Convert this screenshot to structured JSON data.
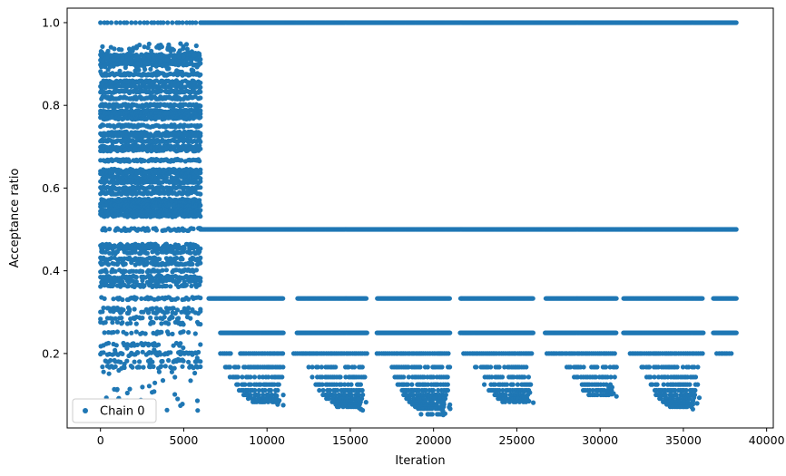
{
  "chart_data": {
    "type": "scatter",
    "title": "",
    "xlabel": "Iteration",
    "ylabel": "Acceptance ratio",
    "xlim": [
      -2000,
      40400
    ],
    "ylim": [
      0.02,
      1.035
    ],
    "xticks": [
      0,
      5000,
      10000,
      15000,
      20000,
      25000,
      30000,
      35000,
      40000
    ],
    "xtick_labels": [
      "0",
      "5000",
      "10000",
      "15000",
      "20000",
      "25000",
      "30000",
      "35000",
      "40000"
    ],
    "yticks": [
      0.2,
      0.4,
      0.6,
      0.8,
      1.0
    ],
    "ytick_labels": [
      "0.2",
      "0.4",
      "0.6",
      "0.8",
      "1.0"
    ],
    "grid": false,
    "legend": {
      "position": "lower-left",
      "entries": [
        "Chain 0"
      ]
    },
    "marker_color": "#1f77b4",
    "series": [
      {
        "name": "Chain 0",
        "bands": [
          {
            "y": 1.0,
            "x_start": 0,
            "x_end": 38200,
            "density": "sparse-then-solid",
            "solid_from": 6000
          },
          {
            "y": 0.5,
            "x_start": 0,
            "x_end": 38200,
            "density": "solid"
          },
          {
            "y": 0.333,
            "x_start": 6500,
            "x_end": 38200,
            "density": "solid",
            "gaps": [
              [
                11000,
                11800
              ],
              [
                16000,
                16600
              ],
              [
                21000,
                21600
              ],
              [
                26000,
                26700
              ],
              [
                31000,
                31400
              ],
              [
                36200,
                36800
              ]
            ]
          },
          {
            "y": 0.25,
            "x_start": 7200,
            "x_end": 38200,
            "density": "segmented",
            "segments": [
              [
                7200,
                11000
              ],
              [
                11800,
                16000
              ],
              [
                16600,
                21000
              ],
              [
                21600,
                26000
              ],
              [
                26700,
                31000
              ],
              [
                31400,
                36200
              ],
              [
                36800,
                38200
              ]
            ]
          },
          {
            "y": 0.2,
            "x_start": 7200,
            "x_end": 38000,
            "density": "segmented"
          }
        ],
        "early_region": {
          "x_start": 0,
          "x_end": 6000,
          "y_range": [
            0.06,
            0.95
          ],
          "levels": [
            0.92,
            0.91,
            0.9,
            0.875,
            0.857,
            0.846,
            0.833,
            0.818,
            0.8,
            0.786,
            0.778,
            0.769,
            0.75,
            0.733,
            0.727,
            0.714,
            0.7,
            0.692,
            0.667,
            0.643,
            0.636,
            0.625,
            0.615,
            0.6,
            0.588,
            0.571,
            0.563,
            0.556,
            0.545,
            0.538,
            0.533,
            0.5,
            0.462,
            0.455,
            0.444,
            0.429,
            0.417,
            0.4,
            0.385,
            0.375,
            0.364,
            0.333,
            0.308,
            0.3,
            0.286,
            0.273,
            0.25,
            0.222,
            0.2,
            0.182,
            0.167
          ]
        },
        "clusters": [
          {
            "x_start": 7500,
            "x_end": 11000,
            "y_min": 0.075,
            "levels": [
              0.167,
              0.143,
              0.125,
              0.111,
              0.1,
              0.091,
              0.083
            ]
          },
          {
            "x_start": 12500,
            "x_end": 16000,
            "y_min": 0.06,
            "levels": [
              0.167,
              0.143,
              0.125,
              0.111,
              0.1,
              0.091,
              0.083,
              0.077,
              0.071
            ]
          },
          {
            "x_start": 17500,
            "x_end": 21000,
            "y_min": 0.05,
            "levels": [
              0.167,
              0.143,
              0.125,
              0.111,
              0.1,
              0.091,
              0.083,
              0.077,
              0.071,
              0.067,
              0.053
            ]
          },
          {
            "x_start": 22500,
            "x_end": 26000,
            "y_min": 0.08,
            "levels": [
              0.167,
              0.143,
              0.125,
              0.111,
              0.1,
              0.091,
              0.083
            ]
          },
          {
            "x_start": 28000,
            "x_end": 31000,
            "y_min": 0.09,
            "levels": [
              0.167,
              0.143,
              0.125,
              0.111,
              0.1
            ]
          },
          {
            "x_start": 32500,
            "x_end": 36000,
            "y_min": 0.065,
            "levels": [
              0.167,
              0.143,
              0.125,
              0.111,
              0.1,
              0.091,
              0.083,
              0.077,
              0.071
            ]
          }
        ]
      }
    ]
  }
}
